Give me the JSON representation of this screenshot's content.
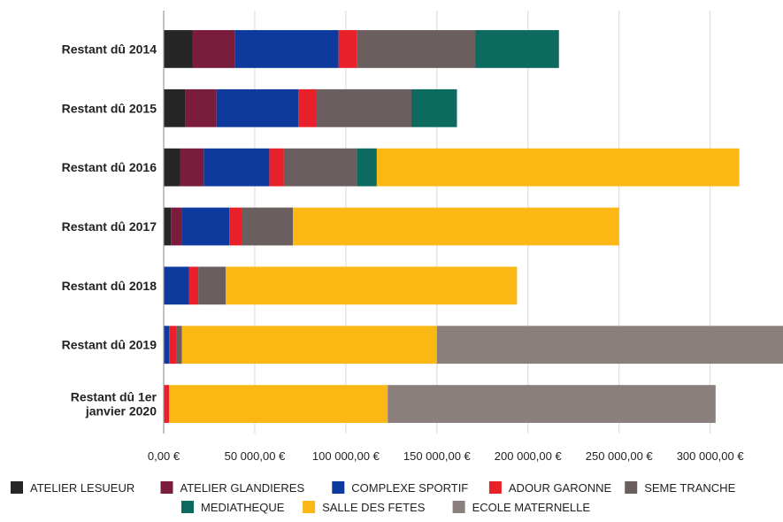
{
  "chart_data": {
    "type": "bar",
    "orientation": "horizontal",
    "stacked": true,
    "title": "",
    "xlabel": "",
    "ylabel": "",
    "xlim": [
      0,
      340000
    ],
    "x_tick_values": [
      0,
      50000,
      100000,
      150000,
      200000,
      250000,
      300000
    ],
    "x_tick_labels": [
      "0,00 €",
      "50 000,00 €",
      "100 000,00 €",
      "150 000,00 €",
      "200 000,00 €",
      "250 000,00 €",
      "300 000,00 €"
    ],
    "grid": "vertical",
    "legend_position": "bottom",
    "categories": [
      "Restant dû 2014",
      "Restant dû 2015",
      "Restant dû 2016",
      "Restant dû 2017",
      "Restant dû 2018",
      "Restant dû 2019",
      "Restant dû 1er janvier 2020"
    ],
    "series": [
      {
        "name": "ATELIER LESUEUR",
        "color": "#262626",
        "values": [
          16000,
          12000,
          9000,
          4000,
          0,
          0,
          0
        ]
      },
      {
        "name": "ATELIER GLANDIERES",
        "color": "#7a1c3c",
        "values": [
          23000,
          17000,
          13000,
          6000,
          0,
          0,
          0
        ]
      },
      {
        "name": "COMPLEXE SPORTIF",
        "color": "#0d3a9c",
        "values": [
          57000,
          45000,
          36000,
          26000,
          14000,
          3000,
          0
        ]
      },
      {
        "name": "ADOUR GARONNE",
        "color": "#e8202a",
        "values": [
          10000,
          10000,
          8000,
          7000,
          5000,
          4000,
          3000
        ]
      },
      {
        "name": "SEME TRANCHE",
        "color": "#6a5e5e",
        "values": [
          65000,
          52000,
          40000,
          28000,
          15000,
          3000,
          0
        ]
      },
      {
        "name": "MEDIATHEQUE",
        "color": "#0c6b5e",
        "values": [
          46000,
          25000,
          11000,
          0,
          0,
          0,
          0
        ]
      },
      {
        "name": "SALLE DES FETES",
        "color": "#fbb714",
        "values": [
          0,
          0,
          199000,
          179000,
          160000,
          140000,
          120000
        ]
      },
      {
        "name": "ECOLE MATERNELLE",
        "color": "#8b7f7e",
        "values": [
          0,
          0,
          0,
          0,
          0,
          195000,
          180000
        ]
      }
    ]
  }
}
